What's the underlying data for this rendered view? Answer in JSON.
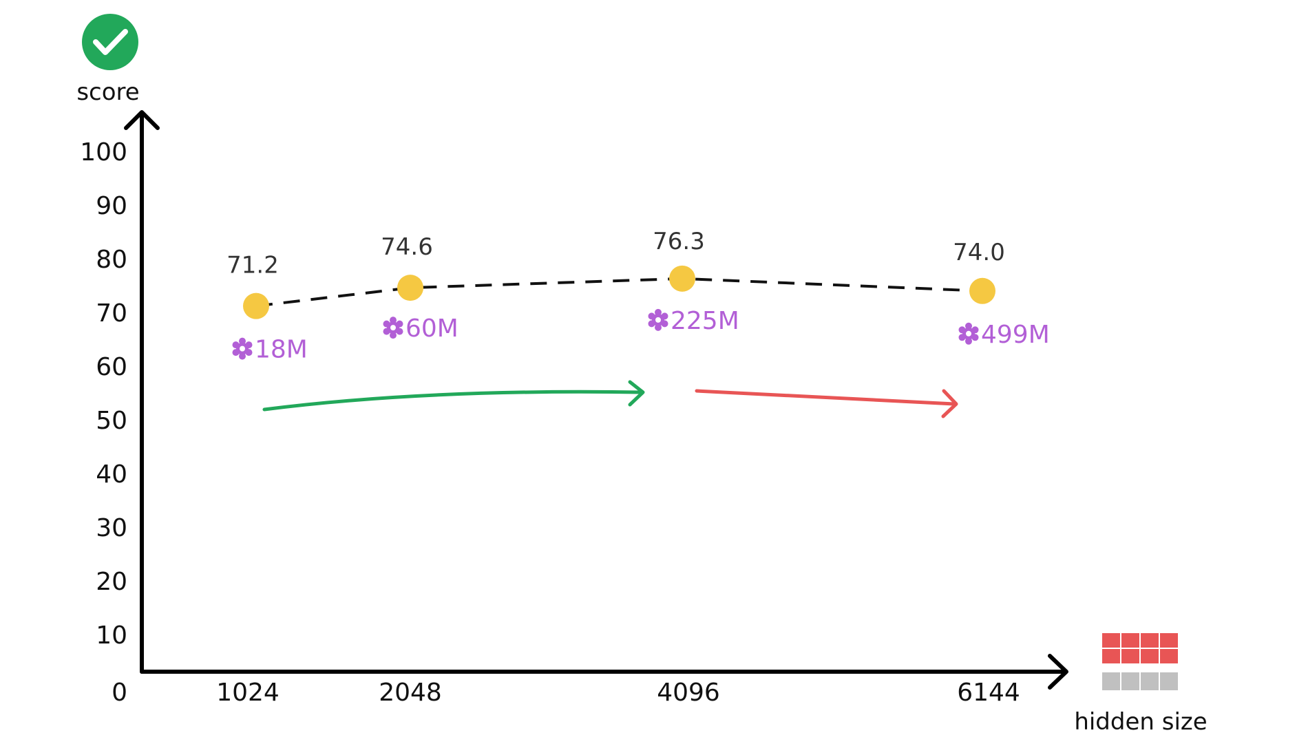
{
  "chart_data": {
    "type": "line",
    "title": "",
    "xlabel": "hidden size",
    "ylabel": "score",
    "ylim": [
      0,
      100
    ],
    "yticks": [
      "0",
      "10",
      "20",
      "30",
      "40",
      "50",
      "60",
      "70",
      "80",
      "90",
      "100"
    ],
    "categories": [
      "1024",
      "2048",
      "4096",
      "6144"
    ],
    "x": [
      1024,
      2048,
      4096,
      6144
    ],
    "series": [
      {
        "values": [
          71.2,
          74.6,
          76.3,
          74.0
        ],
        "labels": [
          "71.2",
          "74.6",
          "76.3",
          "74.0"
        ],
        "params": [
          "18M",
          "60M",
          "225M",
          "499M"
        ]
      }
    ],
    "grid": false,
    "legend": "none",
    "trend_arrows": [
      {
        "from": "1024",
        "to": "4096",
        "trend": "up",
        "color": "#22a85a"
      },
      {
        "from": "4096",
        "to": "6144",
        "trend": "down",
        "color": "#e85555"
      }
    ],
    "colors": {
      "point": "#f5c842",
      "line": "#111111",
      "param": "#b25fd6",
      "check_badge": "#22a85a",
      "grid_icon_top": "#e85555",
      "grid_icon_bottom": "#c0c0c0"
    },
    "icons": [
      "check-icon",
      "gear-icon",
      "grid-icon"
    ]
  }
}
